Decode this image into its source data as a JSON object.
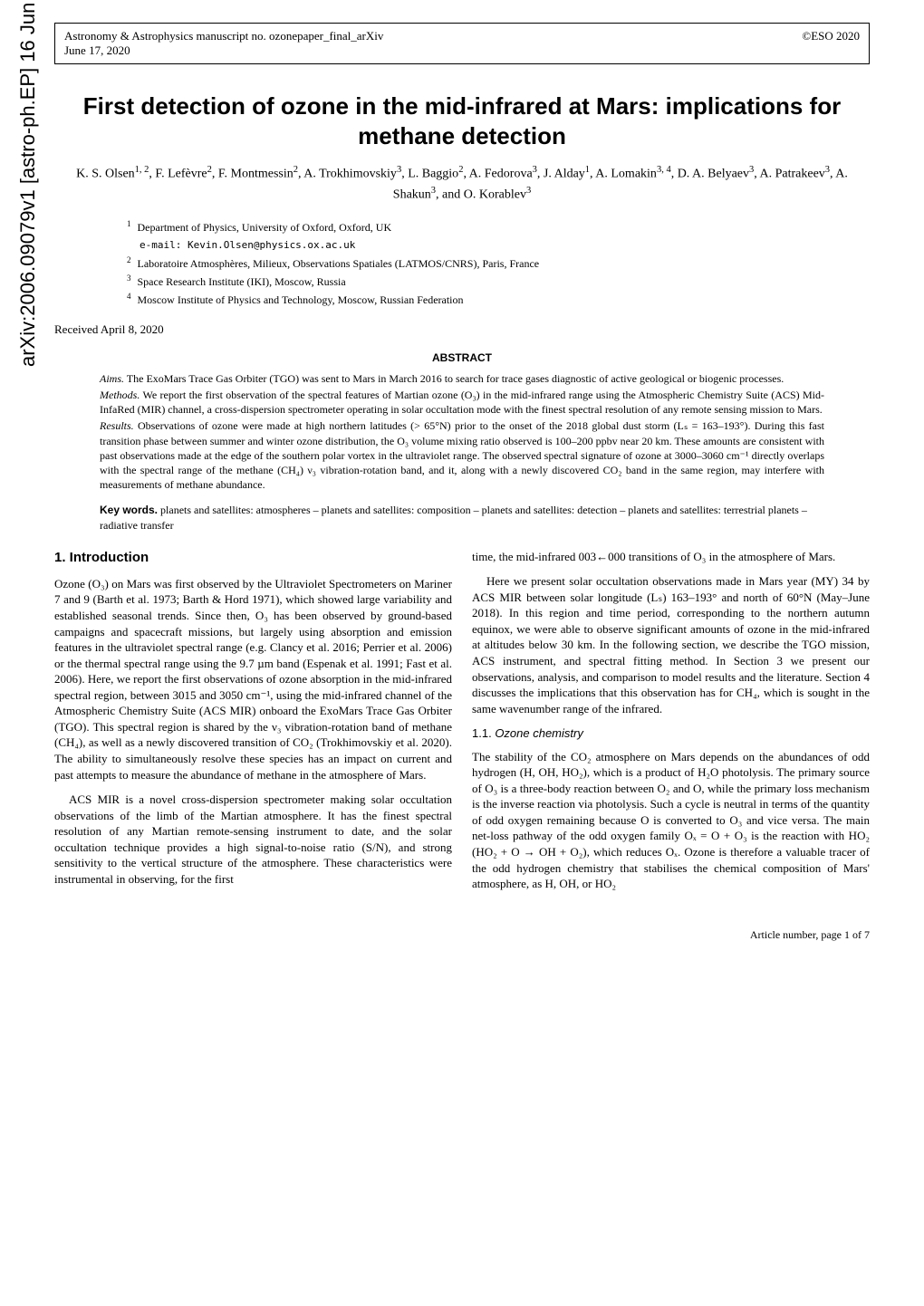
{
  "arxiv_id": "arXiv:2006.09079v1 [astro-ph.EP] 16 Jun 2020",
  "header": {
    "journal_line1": "Astronomy & Astrophysics manuscript no. ozonepaper_final_arXiv",
    "journal_line2": "June 17, 2020",
    "right": "©ESO 2020"
  },
  "title": "First detection of ozone in the mid-infrared at Mars: implications for methane detection",
  "authors_html": "K. S. Olsen<sup>1, 2</sup>, F. Lefèvre<sup>2</sup>, F. Montmessin<sup>2</sup>, A. Trokhimovskiy<sup>3</sup>, L. Baggio<sup>2</sup>, A. Fedorova<sup>3</sup>, J. Alday<sup>1</sup>, A. Lomakin<sup>3, 4</sup>, D. A. Belyaev<sup>3</sup>, A. Patrakeev<sup>3</sup>, A. Shakun<sup>3</sup>, and O. Korablev<sup>3</sup>",
  "affiliations": [
    {
      "num": "1",
      "text": "Department of Physics, University of Oxford, Oxford, UK"
    },
    {
      "num": "",
      "text": "e-mail: Kevin.Olsen@physics.ox.ac.uk",
      "isEmail": true
    },
    {
      "num": "2",
      "text": "Laboratoire Atmosphères, Milieux, Observations Spatiales (LATMOS/CNRS), Paris, France"
    },
    {
      "num": "3",
      "text": "Space Research Institute (IKI), Moscow, Russia"
    },
    {
      "num": "4",
      "text": "Moscow Institute of Physics and Technology, Moscow, Russian Federation"
    }
  ],
  "received": "Received April 8, 2020",
  "abstract": {
    "heading": "ABSTRACT",
    "aims_label": "Aims.",
    "aims": "The ExoMars Trace Gas Orbiter (TGO) was sent to Mars in March 2016 to search for trace gases diagnostic of active geological or biogenic processes.",
    "methods_label": "Methods.",
    "methods": "We report the first observation of the spectral features of Martian ozone (O₃) in the mid-infrared range using the Atmospheric Chemistry Suite (ACS) Mid-InfaRed (MIR) channel, a cross-dispersion spectrometer operating in solar occultation mode with the finest spectral resolution of any remote sensing mission to Mars.",
    "results_label": "Results.",
    "results": "Observations of ozone were made at high northern latitudes (> 65°N) prior to the onset of the 2018 global dust storm (Lₛ = 163–193°). During this fast transition phase between summer and winter ozone distribution, the O₃ volume mixing ratio observed is 100–200 ppbv near 20 km. These amounts are consistent with past observations made at the edge of the southern polar vortex in the ultraviolet range. The observed spectral signature of ozone at 3000–3060 cm⁻¹ directly overlaps with the spectral range of the methane (CH₄) ν₃ vibration-rotation band, and it, along with a newly discovered CO₂ band in the same region, may interfere with measurements of methane abundance."
  },
  "keywords": {
    "label": "Key words.",
    "text": "planets and satellites: atmospheres – planets and satellites: composition – planets and satellites: detection – planets and satellites: terrestrial planets – radiative transfer"
  },
  "section1": {
    "heading": "1. Introduction",
    "p1": "Ozone (O₃) on Mars was first observed by the Ultraviolet Spectrometers on Mariner 7 and 9 (Barth et al. 1973; Barth & Hord 1971), which showed large variability and established seasonal trends. Since then, O₃ has been observed by ground-based campaigns and spacecraft missions, but largely using absorption and emission features in the ultraviolet spectral range (e.g. Clancy et al. 2016; Perrier et al. 2006) or the thermal spectral range using the 9.7 µm band (Espenak et al. 1991; Fast et al. 2006). Here, we report the first observations of ozone absorption in the mid-infrared spectral region, between 3015 and 3050 cm⁻¹, using the mid-infrared channel of the Atmospheric Chemistry Suite (ACS MIR) onboard the ExoMars Trace Gas Orbiter (TGO). This spectral region is shared by the ν₃ vibration-rotation band of methane (CH₄), as well as a newly discovered transition of CO₂ (Trokhimovskiy et al. 2020). The ability to simultaneously resolve these species has an impact on current and past attempts to measure the abundance of methane in the atmosphere of Mars.",
    "p2": "ACS MIR is a novel cross-dispersion spectrometer making solar occultation observations of the limb of the Martian atmosphere. It has the finest spectral resolution of any Martian remote-sensing instrument to date, and the solar occultation technique provides a high signal-to-noise ratio (S/N), and strong sensitivity to the vertical structure of the atmosphere. These characteristics were instrumental in observing, for the first",
    "p3": "time, the mid-infrared 003←000 transitions of O₃ in the atmosphere of Mars.",
    "p4": "Here we present solar occultation observations made in Mars year (MY) 34 by ACS MIR between solar longitude (Lₛ) 163–193° and north of 60°N (May–June 2018). In this region and time period, corresponding to the northern autumn equinox, we were able to observe significant amounts of ozone in the mid-infrared at altitudes below 30 km. In the following section, we describe the TGO mission, ACS instrument, and spectral fitting method. In Section 3 we present our observations, analysis, and comparison to model results and the literature. Section 4 discusses the implications that this observation has for CH₄, which is sought in the same wavenumber range of the infrared."
  },
  "section1_1": {
    "heading_num": "1.1.",
    "heading_txt": "Ozone chemistry",
    "p1": "The stability of the CO₂ atmosphere on Mars depends on the abundances of odd hydrogen (H, OH, HO₂), which is a product of H₂O photolysis. The primary source of O₃ is a three-body reaction between O₂ and O, while the primary loss mechanism is the inverse reaction via photolysis. Such a cycle is neutral in terms of the quantity of odd oxygen remaining because O is converted to O₃ and vice versa. The main net-loss pathway of the odd oxygen family Oₓ = O + O₃ is the reaction with HO₂ (HO₂ + O → OH + O₂), which reduces Oₓ. Ozone is therefore a valuable tracer of the odd hydrogen chemistry that stabilises the chemical composition of Mars' atmosphere, as H, OH, or HO₂"
  },
  "footer": "Article number, page 1 of 7",
  "colors": {
    "text": "#000000",
    "background": "#ffffff",
    "border": "#000000"
  },
  "fonts": {
    "body": "Georgia, 'Times New Roman', serif",
    "headings": "Arial, Helvetica, sans-serif",
    "mono": "monospace"
  }
}
